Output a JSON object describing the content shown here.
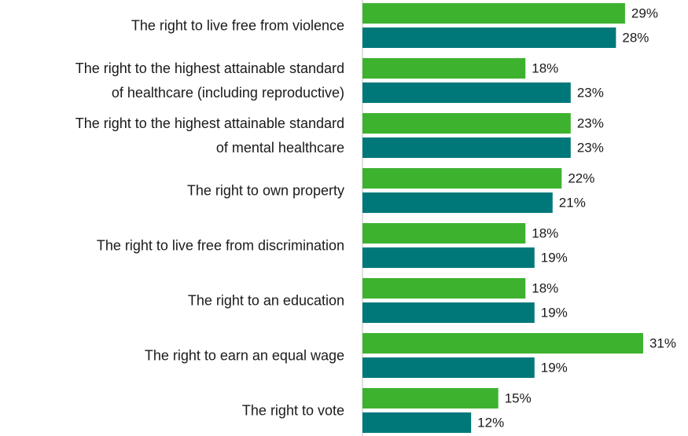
{
  "chart_data": {
    "type": "bar",
    "orientation": "horizontal",
    "categories": [
      "The right to live free from violence",
      "The right to the highest attainable standard\nof healthcare (including reproductive)",
      "The right to the highest attainable standard\nof mental healthcare",
      "The right to own property",
      "The right to live free from discrimination",
      "The right to an education",
      "The right to earn an equal wage",
      "The right to vote"
    ],
    "series": [
      {
        "color": "#3db22e",
        "values": [
          29,
          18,
          23,
          22,
          18,
          18,
          31,
          15
        ],
        "value_labels": [
          "29%",
          "18%",
          "23%",
          "22%",
          "18%",
          "18%",
          "31%",
          "15%"
        ]
      },
      {
        "color": "#00787a",
        "values": [
          28,
          23,
          23,
          21,
          19,
          19,
          19,
          12
        ],
        "value_labels": [
          "28%",
          "23%",
          "23%",
          "21%",
          "19%",
          "19%",
          "19%",
          "12%"
        ]
      }
    ],
    "xlim": [
      0,
      35
    ]
  }
}
